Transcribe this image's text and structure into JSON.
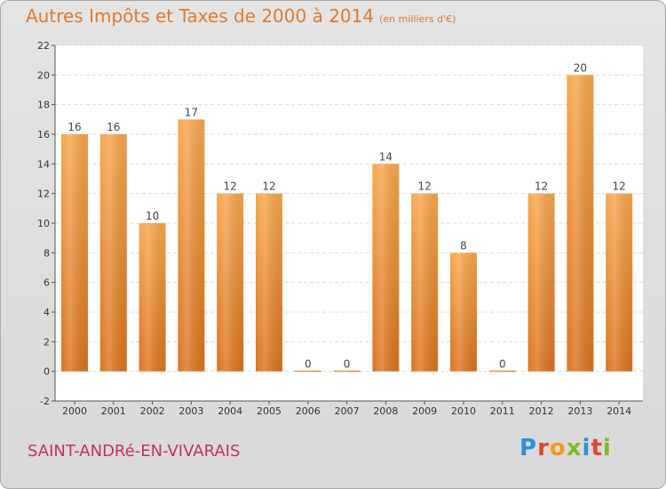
{
  "header": {
    "title": "Autres Impôts et Taxes de 2000 à 2014",
    "subtitle": "(en milliers d'€)"
  },
  "footer": {
    "place": "SAINT-ANDRé-EN-VIVARAIS",
    "logo_text": "Proxiti"
  },
  "colors": {
    "bar_top": "#f7a84e",
    "bar_bottom": "#db7420",
    "title": "#e07a2c",
    "place": "#c2306a",
    "logo": [
      "#2e8fd8",
      "#e0482a",
      "#f09a1c",
      "#7dbb2a",
      "#2e8fd8",
      "#e0482a",
      "#7dbb2a"
    ]
  },
  "chart_data": {
    "type": "bar",
    "title": "Autres Impôts et Taxes de 2000 à 2014",
    "subtitle": "(en milliers d'€)",
    "categories": [
      "2000",
      "2001",
      "2002",
      "2003",
      "2004",
      "2005",
      "2006",
      "2007",
      "2008",
      "2009",
      "2010",
      "2011",
      "2012",
      "2013",
      "2014"
    ],
    "values": [
      16,
      16,
      10,
      17,
      12,
      12,
      0,
      0,
      14,
      12,
      8,
      0,
      12,
      20,
      12
    ],
    "ylim": [
      -2,
      22
    ],
    "yticks": [
      -2,
      0,
      2,
      4,
      6,
      8,
      10,
      12,
      14,
      16,
      18,
      20,
      22
    ],
    "grid": true
  }
}
